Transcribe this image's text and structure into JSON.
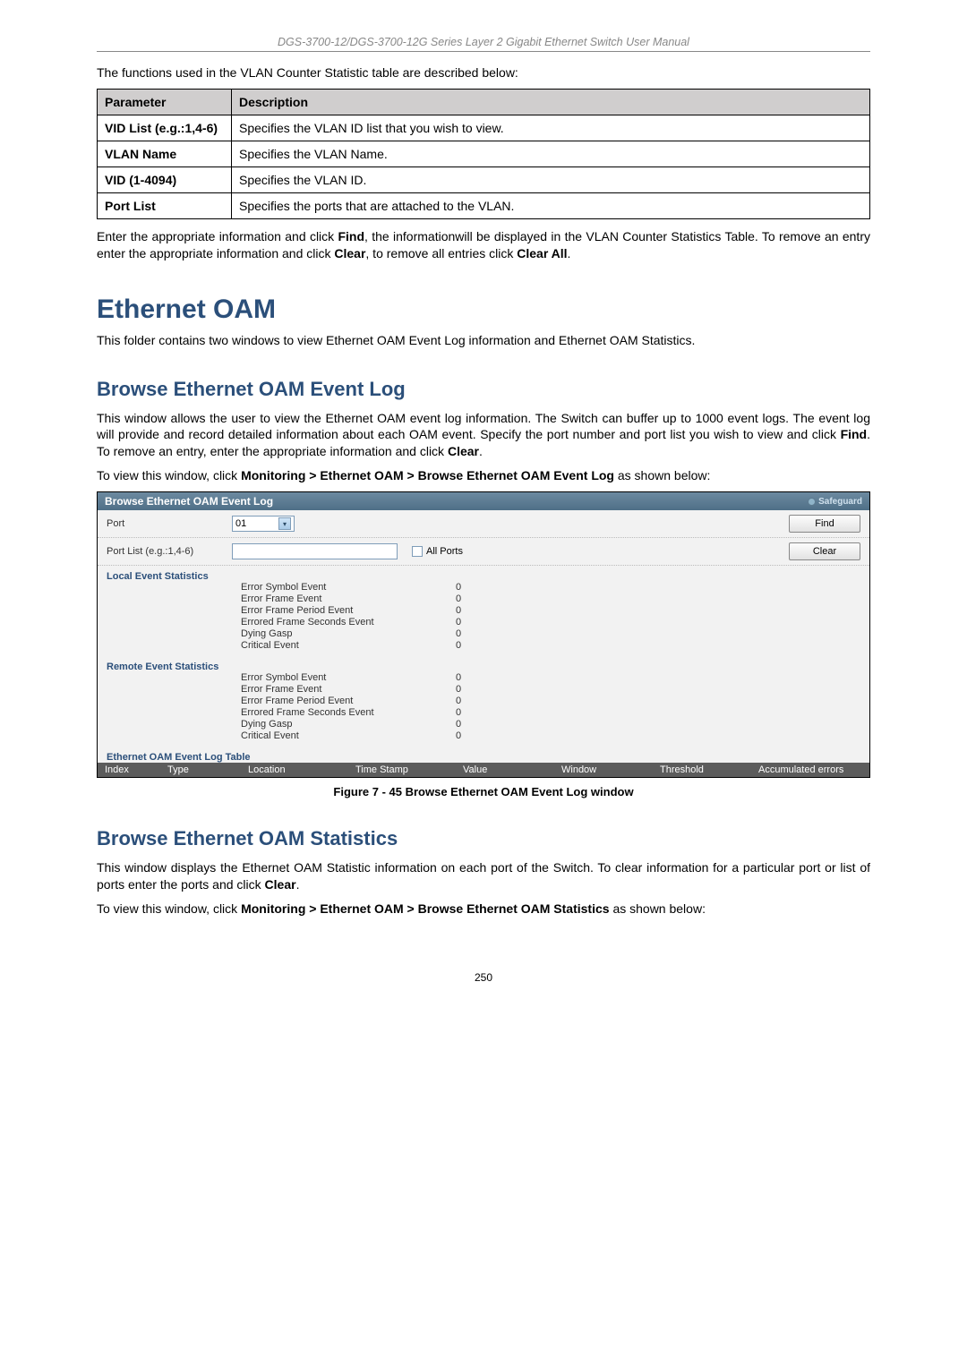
{
  "header": {
    "title": "DGS-3700-12/DGS-3700-12G Series Layer 2 Gigabit Ethernet Switch User Manual"
  },
  "intro_text": "The functions used in the VLAN Counter Statistic table are described below:",
  "param_table": {
    "headers": {
      "param": "Parameter",
      "desc": "Description"
    },
    "rows": [
      {
        "param": "VID List (e.g.:1,4-6)",
        "desc": "Specifies the VLAN ID list that you wish to view."
      },
      {
        "param": "VLAN Name",
        "desc": "Specifies the VLAN Name."
      },
      {
        "param": "VID (1-4094)",
        "desc": "Specifies the VLAN ID."
      },
      {
        "param": "Port List",
        "desc": "Specifies the ports that are attached to the VLAN."
      }
    ]
  },
  "after_table": {
    "p1a": "Enter the appropriate information and click ",
    "p1b": "Find",
    "p1c": ", the informationwill be displayed in the VLAN Counter Statistics Table. To remove an entry enter the appropriate information and click ",
    "p1d": "Clear",
    "p1e": ", to remove all entries click ",
    "p1f": "Clear All",
    "p1g": "."
  },
  "h1": "Ethernet OAM",
  "h1_text": "This folder contains two windows to view Ethernet OAM Event Log information and Ethernet OAM Statistics.",
  "h2a": "Browse Ethernet OAM Event Log",
  "h2a_p1a": "This window allows the user to view the Ethernet OAM event log information. The Switch can buffer up to 1000 event logs. The event log will provide and record detailed information about each OAM event. Specify the port number and port list you wish to view and click ",
  "h2a_p1b": "Find",
  "h2a_p1c": ". To remove an entry, enter the appropriate information and click ",
  "h2a_p1d": "Clear",
  "h2a_p1e": ".",
  "h2a_p2a": "To view this window, click ",
  "h2a_p2b": "Monitoring > Ethernet OAM > Browse Ethernet OAM Event Log",
  "h2a_p2c": " as shown below:",
  "ui": {
    "title": "Browse Ethernet OAM Event Log",
    "safeguard": "Safeguard",
    "port_label": "Port",
    "port_value": "01",
    "find_btn": "Find",
    "portlist_label": "Port List (e.g.:1,4-6)",
    "allports_label": "All Ports",
    "clear_btn": "Clear",
    "local_heading": "Local Event Statistics",
    "remote_heading": "Remote Event Statistics",
    "stat_rows": [
      {
        "label": "Error Symbol Event",
        "val": "0"
      },
      {
        "label": "Error Frame Event",
        "val": "0"
      },
      {
        "label": "Error Frame Period Event",
        "val": "0"
      },
      {
        "label": "Errored Frame Seconds Event",
        "val": "0"
      },
      {
        "label": "Dying Gasp",
        "val": "0"
      },
      {
        "label": "Critical Event",
        "val": "0"
      }
    ],
    "table_heading": "Ethernet OAM Event Log Table",
    "cols": [
      "Index",
      "Type",
      "Location",
      "Time Stamp",
      "Value",
      "Window",
      "Threshold",
      "Accumulated errors"
    ]
  },
  "figcap": "Figure 7 - 45 Browse Ethernet OAM Event Log window",
  "h2b": "Browse Ethernet OAM Statistics",
  "h2b_p1a": "This window displays the Ethernet OAM Statistic information on each port of the Switch. To clear information for a particular port or list of ports enter the ports and click ",
  "h2b_p1b": "Clear",
  "h2b_p1c": ".",
  "h2b_p2a": "To view this window, click ",
  "h2b_p2b": "Monitoring > Ethernet OAM > Browse Ethernet OAM Statistics",
  "h2b_p2c": " as shown below:",
  "page_number": "250"
}
